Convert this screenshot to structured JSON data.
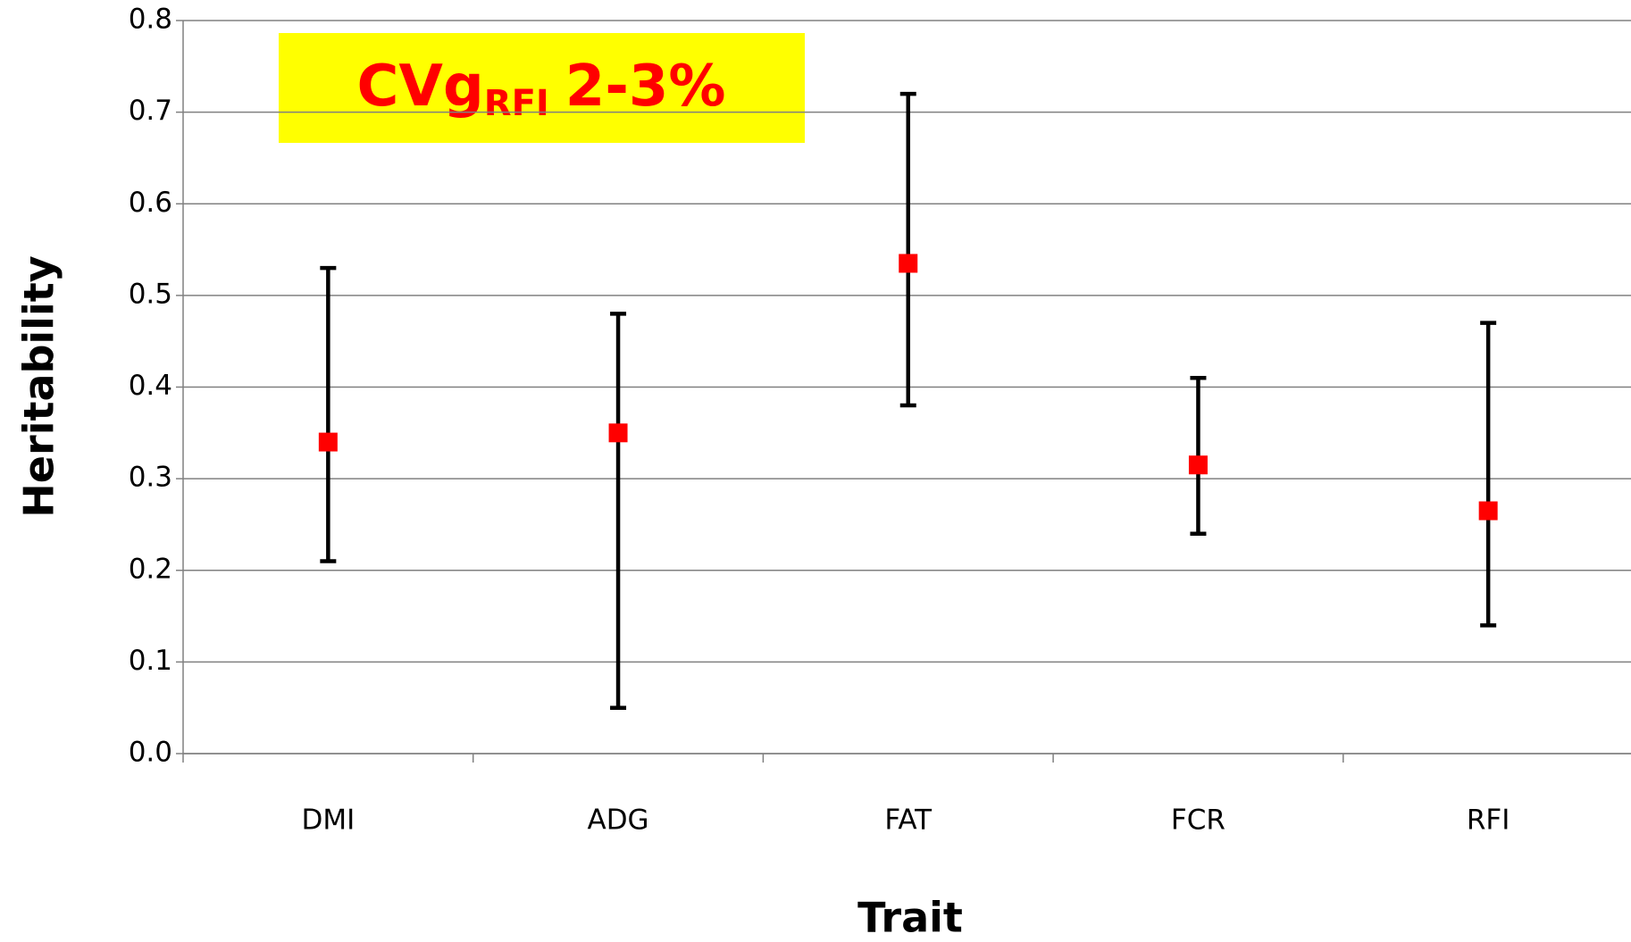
{
  "chart_data": {
    "type": "errorbar",
    "annotation": {
      "text": "CVg",
      "subscript": "RFI",
      "suffix": "2-3%"
    },
    "xlabel": "Trait",
    "ylabel": "Heritability",
    "categories": [
      "DMI",
      "ADG",
      "FAT",
      "FCR",
      "RFI"
    ],
    "series": [
      {
        "color": "#ff0000",
        "values": [
          0.34,
          0.35,
          0.535,
          0.315,
          0.265
        ],
        "low": [
          0.21,
          0.05,
          0.38,
          0.24,
          0.14
        ],
        "high": [
          0.53,
          0.48,
          0.72,
          0.41,
          0.47
        ]
      }
    ],
    "ylim": [
      0,
      0.8
    ],
    "yticks": [
      {
        "value": 0,
        "label": "0.0"
      },
      0.1,
      0.2,
      0.3,
      0.4,
      0.5,
      0.6,
      0.7,
      0.8
    ],
    "grid": true
  }
}
